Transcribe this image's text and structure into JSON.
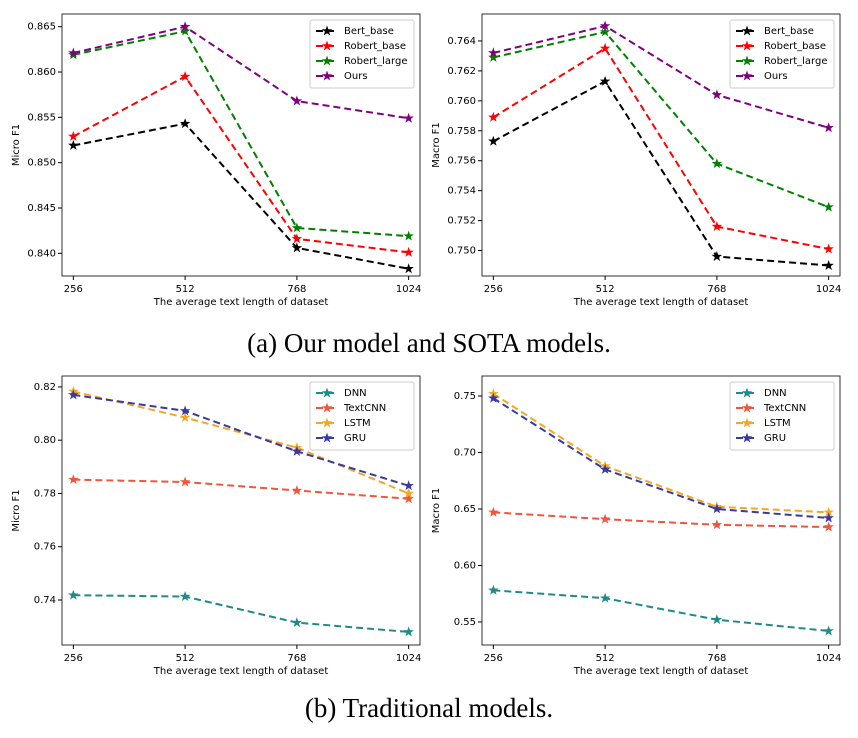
{
  "figure": {
    "captions": [
      "(a) Our model and SOTA models.",
      "(b) Traditional models."
    ]
  },
  "chart_data": [
    {
      "type": "line",
      "x": [
        256,
        512,
        768,
        1024
      ],
      "xlim": [
        230,
        1050
      ],
      "xticks": [
        256,
        512,
        768,
        1024
      ],
      "ylim": [
        0.8375,
        0.8664
      ],
      "yticks": [
        {
          "value": 0.84,
          "label": "0.840"
        },
        0.845,
        {
          "value": 0.85,
          "label": "0.850"
        },
        0.855,
        {
          "value": 0.86,
          "label": "0.860"
        },
        0.865
      ],
      "xlabel": "The average text length of dataset",
      "ylabel": "Micro F1",
      "legend": "upper right",
      "grid": false,
      "series": [
        {
          "name": "Bert_base",
          "color": "#000000",
          "values": [
            0.8519,
            0.8543,
            0.8406,
            0.8383
          ]
        },
        {
          "name": "Robert_base",
          "color": "#ff0000",
          "values": [
            0.8529,
            0.8595,
            0.8416,
            0.8401
          ]
        },
        {
          "name": "Robert_large",
          "color": "#008000",
          "values": [
            0.8619,
            0.8645,
            0.8428,
            0.8419
          ]
        },
        {
          "name": "Ours",
          "color": "#800080",
          "values": [
            0.8621,
            0.865,
            0.8568,
            0.8549
          ]
        }
      ]
    },
    {
      "type": "line",
      "x": [
        256,
        512,
        768,
        1024
      ],
      "xlim": [
        230,
        1050
      ],
      "xticks": [
        256,
        512,
        768,
        1024
      ],
      "ylim": [
        0.7483,
        0.7658
      ],
      "yticks": [
        {
          "value": 0.75,
          "label": "0.750"
        },
        0.752,
        0.754,
        0.756,
        0.758,
        {
          "value": 0.76,
          "label": "0.760"
        },
        0.762,
        0.764
      ],
      "xlabel": "The average text length of dataset",
      "ylabel": "Macro F1",
      "legend": "upper right",
      "grid": false,
      "series": [
        {
          "name": "Bert_base",
          "color": "#000000",
          "values": [
            0.7573,
            0.7613,
            0.7496,
            0.749
          ]
        },
        {
          "name": "Robert_base",
          "color": "#ff0000",
          "values": [
            0.7589,
            0.7635,
            0.7516,
            0.7501
          ]
        },
        {
          "name": "Robert_large",
          "color": "#008000",
          "values": [
            0.7629,
            0.7646,
            0.7558,
            0.7529
          ]
        },
        {
          "name": "Ours",
          "color": "#800080",
          "values": [
            0.7632,
            0.765,
            0.7604,
            0.7582
          ]
        }
      ]
    },
    {
      "type": "line",
      "x": [
        256,
        512,
        768,
        1024
      ],
      "xlim": [
        230,
        1050
      ],
      "xticks": [
        256,
        512,
        768,
        1024
      ],
      "ylim": [
        0.7231,
        0.8241
      ],
      "yticks": [
        0.74,
        0.76,
        0.78,
        {
          "value": 0.8,
          "label": "0.80"
        },
        0.82
      ],
      "xlabel": "The average text length of dataset",
      "ylabel": "Micro F1",
      "legend": "upper right",
      "grid": false,
      "series": [
        {
          "name": "DNN",
          "color": "#1f8a8a",
          "values": [
            0.7418,
            0.7413,
            0.7315,
            0.728
          ]
        },
        {
          "name": "TextCNN",
          "color": "#f0553d",
          "values": [
            0.7852,
            0.7843,
            0.7811,
            0.778
          ]
        },
        {
          "name": "LSTM",
          "color": "#f5a623",
          "values": [
            0.8183,
            0.8085,
            0.7972,
            0.78
          ]
        },
        {
          "name": "GRU",
          "color": "#3a3a9e",
          "values": [
            0.817,
            0.811,
            0.7958,
            0.7829
          ]
        }
      ]
    },
    {
      "type": "line",
      "x": [
        256,
        512,
        768,
        1024
      ],
      "xlim": [
        230,
        1050
      ],
      "xticks": [
        256,
        512,
        768,
        1024
      ],
      "ylim": [
        0.5296,
        0.7677
      ],
      "yticks": [
        0.55,
        {
          "value": 0.6,
          "label": "0.60"
        },
        0.65,
        {
          "value": 0.7,
          "label": "0.70"
        },
        0.75
      ],
      "xlabel": "The average text length of dataset",
      "ylabel": "Macro F1",
      "legend": "upper right",
      "grid": false,
      "series": [
        {
          "name": "DNN",
          "color": "#1f8a8a",
          "values": [
            0.578,
            0.571,
            0.552,
            0.542
          ]
        },
        {
          "name": "TextCNN",
          "color": "#f0553d",
          "values": [
            0.647,
            0.641,
            0.636,
            0.634
          ]
        },
        {
          "name": "LSTM",
          "color": "#f5a623",
          "values": [
            0.752,
            0.688,
            0.652,
            0.647
          ]
        },
        {
          "name": "GRU",
          "color": "#3a3a9e",
          "values": [
            0.748,
            0.685,
            0.65,
            0.642
          ]
        }
      ]
    }
  ]
}
